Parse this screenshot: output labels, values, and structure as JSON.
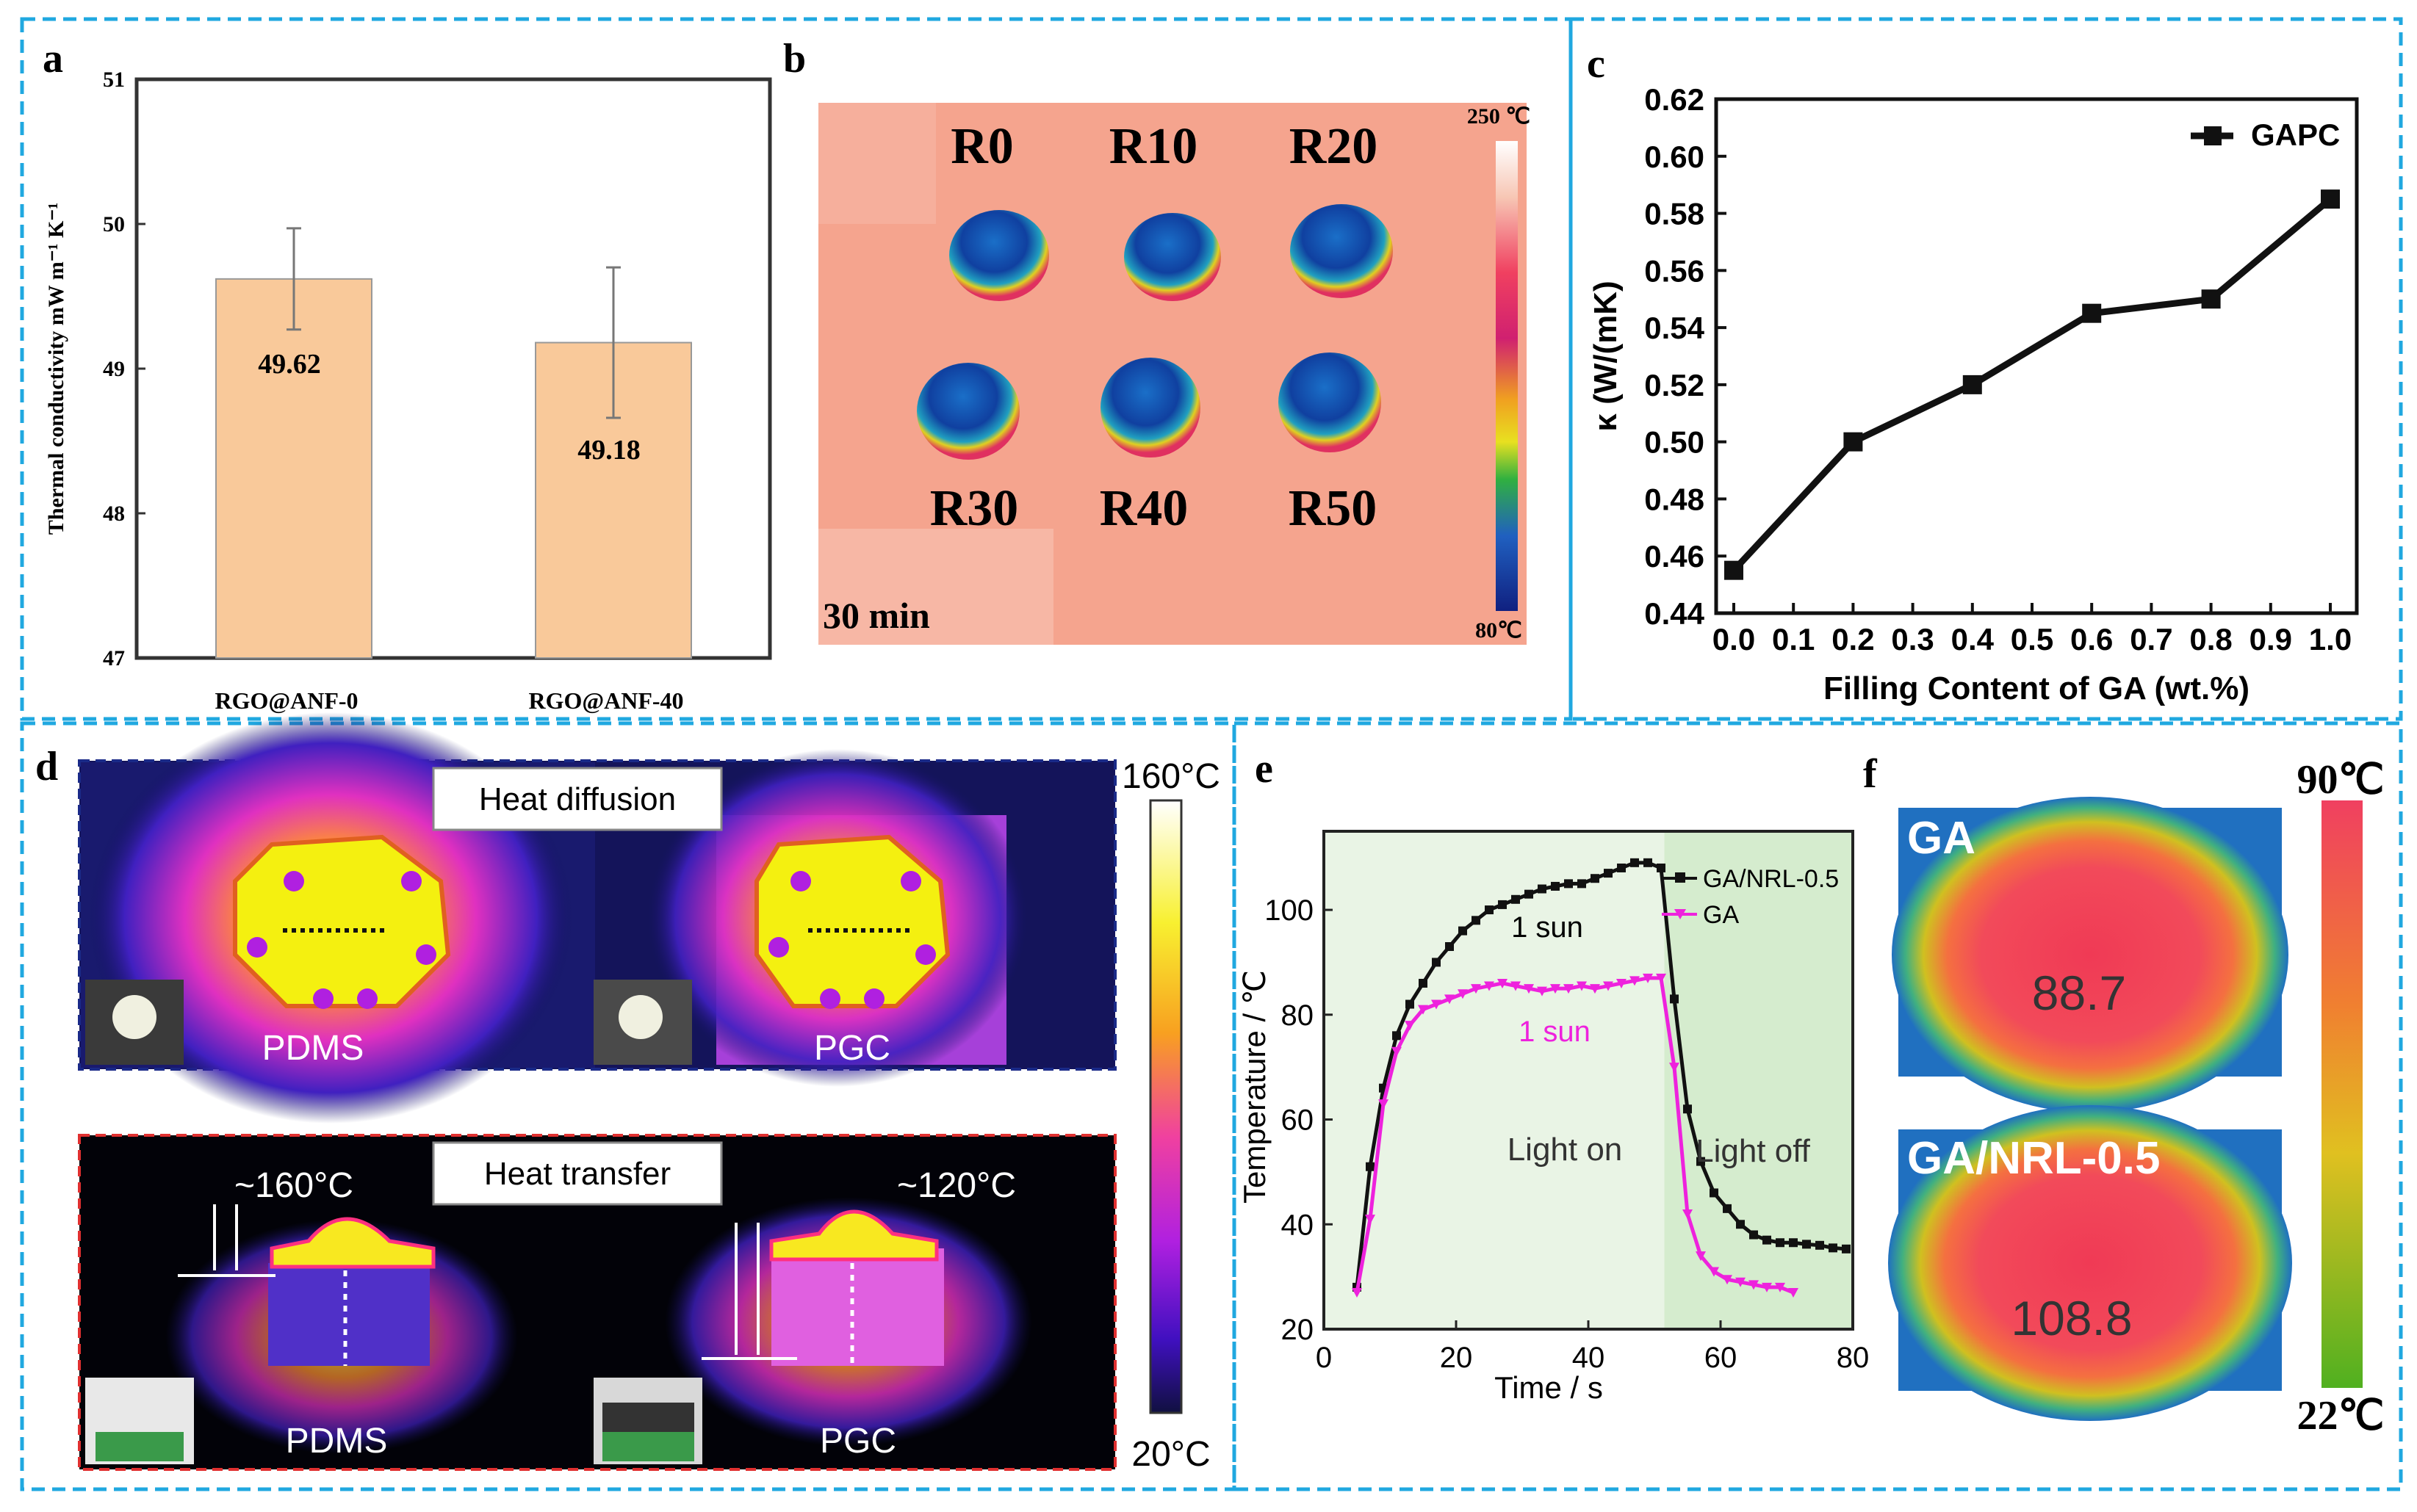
{
  "panel_labels": {
    "a": "a",
    "b": "b",
    "c": "c",
    "d": "d",
    "e": "e",
    "f": "f"
  },
  "chart_data": [
    {
      "id": "a",
      "type": "bar",
      "categories": [
        "RGO@ANF-0",
        "RGO@ANF-40"
      ],
      "values": [
        49.62,
        49.18
      ],
      "value_labels": [
        "49.62",
        "49.18"
      ],
      "errors": [
        0.35,
        0.52
      ],
      "ylabel": "Thermal conductivity  mW m⁻¹ K⁻¹",
      "ylim": [
        47,
        51
      ],
      "yticks": [
        "47",
        "48",
        "49",
        "50",
        "51"
      ],
      "bar_color": "#f9c99a"
    },
    {
      "id": "c",
      "type": "line",
      "series": [
        {
          "name": "GAPC",
          "x": [
            0.0,
            0.2,
            0.4,
            0.6,
            0.8,
            1.0
          ],
          "values": [
            0.455,
            0.5,
            0.52,
            0.545,
            0.55,
            0.585
          ]
        }
      ],
      "xlabel": "Filling Content of GA (wt.%)",
      "ylabel": "κ (W/(mK)",
      "xlim": [
        0.0,
        1.0
      ],
      "ylim": [
        0.44,
        0.62
      ],
      "xticks": [
        "0.0",
        "0.1",
        "0.2",
        "0.3",
        "0.4",
        "0.5",
        "0.6",
        "0.7",
        "0.8",
        "0.9",
        "1.0"
      ],
      "yticks": [
        "0.44",
        "0.46",
        "0.48",
        "0.50",
        "0.52",
        "0.54",
        "0.56",
        "0.58",
        "0.60",
        "0.62"
      ],
      "legend": "top-right"
    },
    {
      "id": "e",
      "type": "line",
      "series": [
        {
          "name": "GA/NRL-0.5",
          "color": "#111111",
          "x": [
            5,
            7,
            9,
            11,
            13,
            15,
            17,
            19,
            21,
            23,
            25,
            27,
            29,
            31,
            33,
            35,
            37,
            39,
            41,
            43,
            45,
            47,
            49,
            51,
            53,
            55,
            57,
            59,
            61,
            63,
            65,
            67,
            69,
            71,
            73,
            75,
            77,
            79
          ],
          "values": [
            28,
            51,
            66,
            76,
            82,
            86,
            90,
            93,
            96,
            98,
            100,
            101,
            102,
            103,
            104,
            104.5,
            105,
            105,
            106,
            107,
            108,
            109,
            109,
            108,
            83,
            62,
            52,
            46,
            43,
            40,
            38,
            37,
            36.5,
            36.5,
            36.2,
            36,
            35.5,
            35.3
          ]
        },
        {
          "name": "GA",
          "color": "#ee22dd",
          "x": [
            5,
            7,
            9,
            11,
            13,
            15,
            17,
            19,
            21,
            23,
            25,
            27,
            29,
            31,
            33,
            35,
            37,
            39,
            41,
            43,
            45,
            47,
            49,
            51,
            53,
            55,
            57,
            59,
            61,
            63,
            65,
            67,
            69,
            71
          ],
          "values": [
            27,
            41,
            63,
            73,
            78,
            81,
            82,
            83,
            84,
            85,
            85.5,
            86,
            85.5,
            85,
            84.5,
            85,
            85,
            85.5,
            85,
            85.5,
            86,
            86.5,
            87,
            87,
            70,
            42,
            34,
            31,
            29.5,
            29,
            28.5,
            28,
            28,
            27
          ]
        }
      ],
      "xlabel": "Time / s",
      "ylabel": "Temperature / ℃",
      "xlim": [
        0,
        80
      ],
      "ylim": [
        20,
        115
      ],
      "xticks": [
        "0",
        "20",
        "40",
        "60",
        "80"
      ],
      "yticks": [
        "20",
        "40",
        "60",
        "80",
        "100"
      ],
      "annotations": {
        "sun_black": "1 sun",
        "sun_pink": "1 sun",
        "light_on": "Light on",
        "light_off": "Light off"
      },
      "legend": "top-right"
    }
  ],
  "panel_b": {
    "labels": [
      "R0",
      "R10",
      "R20",
      "R30",
      "R40",
      "R50"
    ],
    "time": "30 min",
    "scale_max": "250 ℃",
    "scale_min": "80℃"
  },
  "panel_d": {
    "top_title": "Heat diffusion",
    "bottom_title": "Heat transfer",
    "top_left": "PDMS",
    "top_right": "PGC",
    "bottom_left": "PDMS",
    "bottom_right": "PGC",
    "temp_left": "~160°C",
    "temp_right": "~120°C",
    "scale_max": "160°C",
    "scale_min": "20°C"
  },
  "panel_f": {
    "top_label": "GA",
    "top_value": "88.7",
    "bottom_label": "GA/NRL-0.5",
    "bottom_value": "108.8",
    "scale_max": "90℃",
    "scale_min": "22℃"
  }
}
